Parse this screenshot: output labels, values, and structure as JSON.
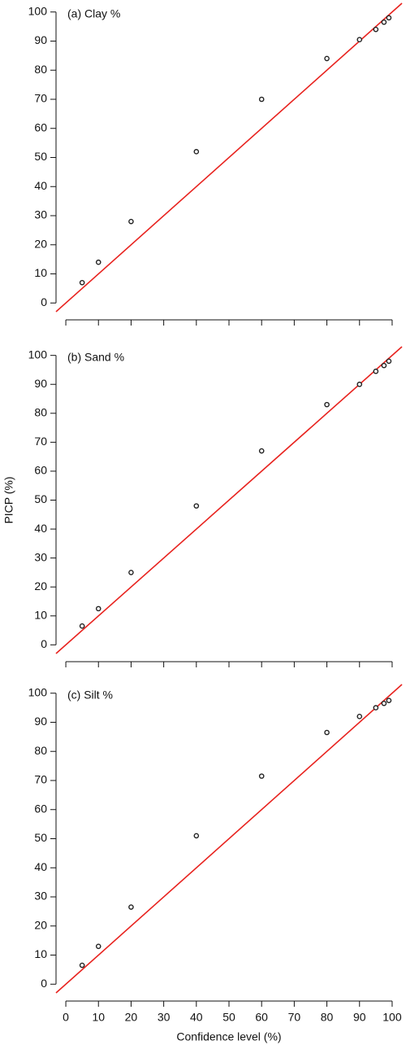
{
  "chart_data": [
    {
      "type": "scatter",
      "title": "(a) Clay %",
      "x": [
        5,
        10,
        20,
        40,
        60,
        80,
        90,
        95,
        97.5,
        99
      ],
      "values": [
        7,
        14,
        28,
        52,
        70,
        84,
        90.5,
        94,
        96.5,
        98
      ],
      "color": "#222222",
      "identity_line": {
        "color": "#e8231f"
      },
      "xlim": [
        -3,
        103
      ],
      "ylim": [
        -3,
        103
      ],
      "xticks": [
        0,
        10,
        20,
        30,
        40,
        50,
        60,
        70,
        80,
        90,
        100
      ],
      "show_xticklabels": false,
      "yticks": [
        0,
        10,
        20,
        30,
        40,
        50,
        60,
        70,
        80,
        90,
        100
      ]
    },
    {
      "type": "scatter",
      "title": "(b) Sand %",
      "ylabel": "PICP (%)",
      "x": [
        5,
        10,
        20,
        40,
        60,
        80,
        90,
        95,
        97.5,
        99
      ],
      "values": [
        6.5,
        12.5,
        25,
        48,
        67,
        83,
        90,
        94.5,
        96.5,
        98
      ],
      "color": "#222222",
      "identity_line": {
        "color": "#e8231f"
      },
      "xlim": [
        -3,
        103
      ],
      "ylim": [
        -3,
        103
      ],
      "xticks": [
        0,
        10,
        20,
        30,
        40,
        50,
        60,
        70,
        80,
        90,
        100
      ],
      "show_xticklabels": false,
      "yticks": [
        0,
        10,
        20,
        30,
        40,
        50,
        60,
        70,
        80,
        90,
        100
      ]
    },
    {
      "type": "scatter",
      "title": "(c) Silt %",
      "xlabel": "Confidence level (%)",
      "x": [
        5,
        10,
        20,
        40,
        60,
        80,
        90,
        95,
        97.5,
        99
      ],
      "values": [
        6.5,
        13,
        26.5,
        51,
        71.5,
        86.5,
        92,
        95,
        96.5,
        97.5
      ],
      "color": "#222222",
      "identity_line": {
        "color": "#e8231f"
      },
      "xlim": [
        -3,
        103
      ],
      "ylim": [
        -3,
        103
      ],
      "xticks": [
        0,
        10,
        20,
        30,
        40,
        50,
        60,
        70,
        80,
        90,
        100
      ],
      "show_xticklabels": true,
      "yticks": [
        0,
        10,
        20,
        30,
        40,
        50,
        60,
        70,
        80,
        90,
        100
      ]
    }
  ]
}
